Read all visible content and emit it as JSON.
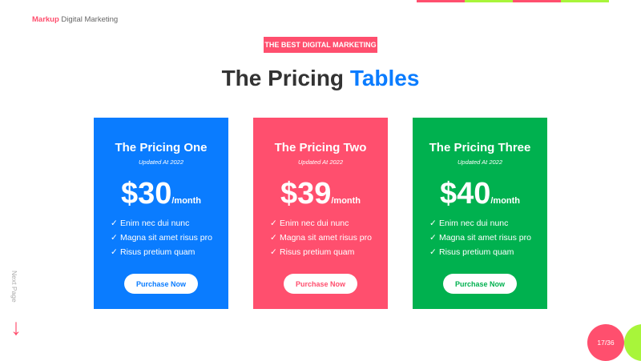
{
  "colors": {
    "blue": "#0a7cff",
    "pink": "#ff4f6e",
    "green": "#00b14f",
    "lime": "#a8f53a"
  },
  "brand": {
    "accent": "Markup",
    "rest": " Digital Marketing"
  },
  "badge": "THE BEST DIGITAL MARKETING",
  "title": {
    "main": "The Pricing ",
    "accent": "Tables"
  },
  "cards": [
    {
      "name": "The Pricing One",
      "updated": "Updated At 2022",
      "price": "$30",
      "period": "/month",
      "features": [
        "Enim nec dui nunc",
        "Magna sit amet risus pro",
        "Risus pretium quam"
      ],
      "button": "Purchase Now"
    },
    {
      "name": "The Pricing Two",
      "updated": "Updated At 2022",
      "price": "$39",
      "period": "/month",
      "features": [
        "Enim nec dui nunc",
        "Magna sit amet risus pro",
        "Risus pretium quam"
      ],
      "button": "Purchase Now"
    },
    {
      "name": "The Pricing Three",
      "updated": "Updated At 2022",
      "price": "$40",
      "period": "/month",
      "features": [
        "Enim nec dui nunc",
        "Magna sit amet risus pro",
        "Risus pretium quam"
      ],
      "button": "Purchase Now"
    }
  ],
  "check_icon": "✓",
  "next_page": "Next Page",
  "arrow_icon": "↓",
  "page_number": "17/36"
}
